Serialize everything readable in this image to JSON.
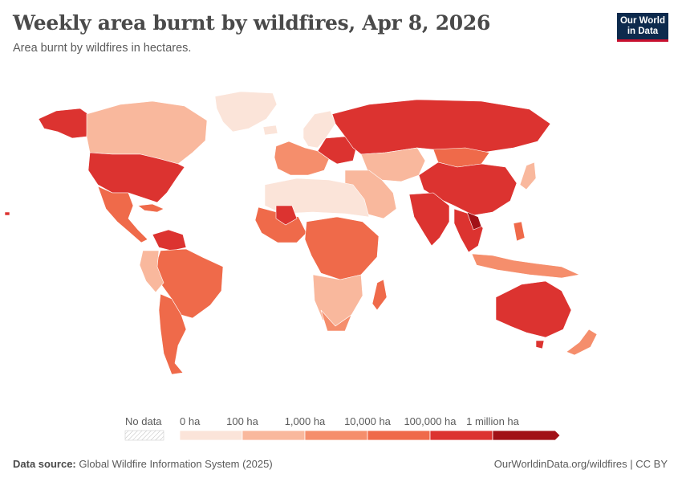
{
  "header": {
    "title": "Weekly area burnt by wildfires, Apr 8, 2026",
    "subtitle": "Area burnt by wildfires in hectares."
  },
  "logo": {
    "line1": "Our World",
    "line2": "in Data"
  },
  "legend": {
    "no_data_label": "No data",
    "bins": [
      {
        "label": "0 ha",
        "color": "#fbe4d9"
      },
      {
        "label": "100 ha",
        "color": "#f9b89d"
      },
      {
        "label": "1,000 ha",
        "color": "#f58e6c"
      },
      {
        "label": "10,000 ha",
        "color": "#ef6a4a"
      },
      {
        "label": "100,000 ha",
        "color": "#dc3330"
      },
      {
        "label": "1 million ha",
        "color": "#a11117"
      }
    ]
  },
  "colors": {
    "bin0": "#fbe4d9",
    "bin1": "#f9b89d",
    "bin2": "#f58e6c",
    "bin3": "#ef6a4a",
    "bin4": "#dc3330",
    "bin5": "#a11117",
    "logo_bg": "#0d2a4d",
    "logo_accent": "#c8102e"
  },
  "footer": {
    "source_label": "Data source:",
    "source_text": "Global Wildfire Information System (2025)",
    "url": "OurWorldinData.org/wildfires | CC BY"
  }
}
